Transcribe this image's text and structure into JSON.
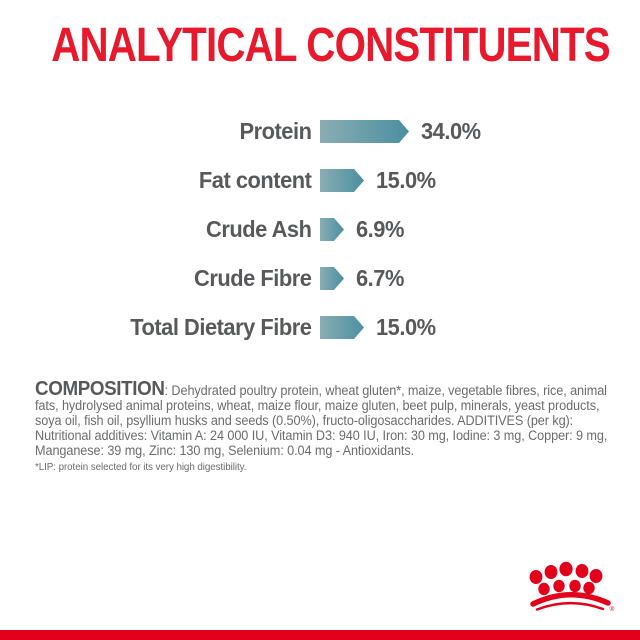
{
  "title": {
    "text": "ANALYTICAL CONSTITUENTS",
    "color": "#e8192c"
  },
  "chart_data": {
    "type": "bar",
    "orientation": "horizontal",
    "categories": [
      "Protein",
      "Fat content",
      "Crude Ash",
      "Crude Fibre",
      "Total Dietary Fibre"
    ],
    "values": [
      34.0,
      15.0,
      6.9,
      6.7,
      15.0
    ],
    "value_labels": [
      "34.0%",
      "15.0%",
      "6.9%",
      "6.7%",
      "15.0%"
    ],
    "unit": "%",
    "xlim": [
      0,
      40
    ],
    "grid": false,
    "legend": "none",
    "bar_color_start": "#8aadb4",
    "bar_color_end": "#4a8fa0",
    "text_color": "#58595b"
  },
  "composition": {
    "heading": "COMPOSITION",
    "body": ": Dehydrated poultry protein, wheat gluten*, maize, vegetable fibres, rice, animal fats, hydrolysed animal proteins, wheat, maize flour, maize gluten, beet pulp, minerals, yeast products, soya oil, fish oil, psyllium husks and seeds (0.50%), fructo-oligosaccharides. ADDITIVES (per kg): Nutritional additives: Vitamin A: 24 000 IU, Vitamin D3: 940 IU, Iron: 30 mg, Iodine: 3 mg, Copper: 9 mg, Manganese: 39 mg, Zinc: 130 mg, Selenium: 0.04 mg - Antioxidants.",
    "footnote": "*LIP: protein selected for its very high digestibility."
  },
  "branding": {
    "logo": "royal-canin-crown",
    "registered_mark": "®",
    "brand_red": "#e2001a"
  }
}
